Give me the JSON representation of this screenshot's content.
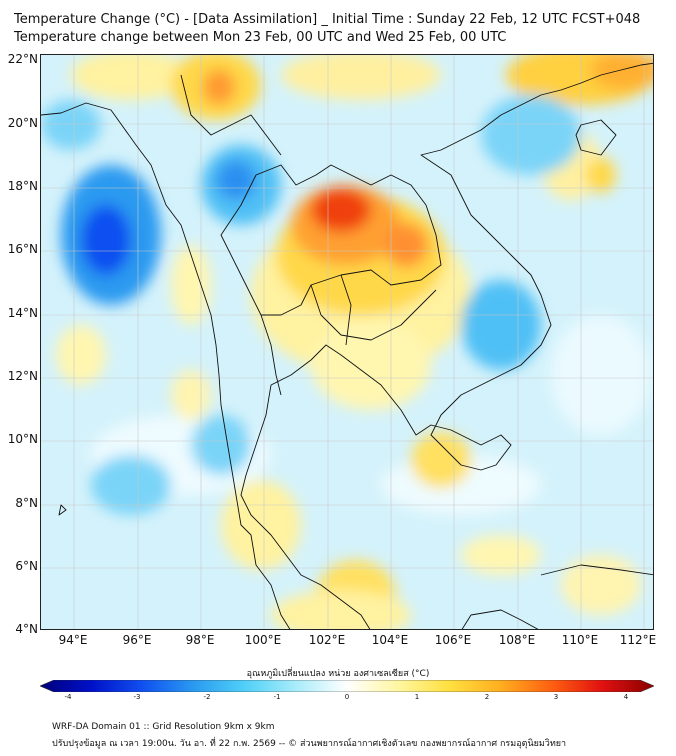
{
  "title_line1": "Temperature Change (°C) - [Data Assimilation] _ Initial Time : Sunday 22 Feb, 12 UTC FCST+048",
  "title_line2": "Temperature change between Mon 23 Feb, 00 UTC and Wed 25 Feb, 00 UTC",
  "lat_labels": [
    "22°N",
    "20°N",
    "18°N",
    "16°N",
    "14°N",
    "12°N",
    "10°N",
    "8°N",
    "6°N",
    "4°N"
  ],
  "lon_labels": [
    "94°E",
    "96°E",
    "98°E",
    "100°E",
    "102°E",
    "104°E",
    "106°E",
    "108°E",
    "110°E",
    "112°E"
  ],
  "colorbar": {
    "caption": "อุณหภูมิเปลี่ยนแปลง หน่วย องศาเซลเซียส (°C)",
    "ticks": [
      "-4",
      "-3",
      "-2",
      "-1",
      "0",
      "1",
      "2",
      "3",
      "4"
    ],
    "min": -4,
    "max": 4,
    "colors": [
      "#00007a",
      "#0010c8",
      "#1050f0",
      "#2a9af0",
      "#50d0f8",
      "#a8ecfa",
      "#ffffff",
      "#fff6a0",
      "#ffe040",
      "#ffae20",
      "#ff6010",
      "#e01010",
      "#8a0000"
    ]
  },
  "footer_line1": "WRF-DA Domain 01 :: Grid Resolution 9km x 9km",
  "footer_line2": "ปรับปรุงข้อมูล ณ เวลา 19:00น. วัน อา. ที่ 22 ก.พ. 2569 -- © ส่วนพยากรณ์อากาศเชิงตัวเลข กองพยากรณ์อากาศ กรมอุตุนิยมวิทยา",
  "colors": {
    "background_field": "#d4f2fb",
    "coastline": "#111111",
    "gridline": "#c8c8c8"
  }
}
